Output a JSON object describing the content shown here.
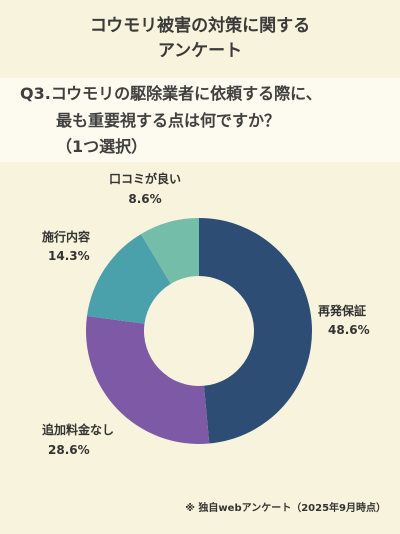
{
  "header": {
    "title_line1": "コウモリ被害の対策に関する",
    "title_line2": "アンケート"
  },
  "question": {
    "line1": "Q3.コウモリの駆除業者に依頼する際に、",
    "line2": "最も重要視する点は何ですか？",
    "line3": "（1つ選択）"
  },
  "chart_data": {
    "type": "pie",
    "donut": true,
    "categories": [
      "再発保証",
      "追加料金なし",
      "施行内容",
      "口コミが良い"
    ],
    "values": [
      48.6,
      28.6,
      14.3,
      8.6
    ],
    "value_labels": [
      "48.6%",
      "28.6%",
      "14.3%",
      "8.6%"
    ],
    "colors": [
      "#2e4d74",
      "#7e5aa6",
      "#4aa0ab",
      "#74bda8"
    ],
    "start_angle_deg": 0,
    "direction": "clockwise"
  },
  "footnote": "※ 独自webアンケート（2025年9月時点）"
}
